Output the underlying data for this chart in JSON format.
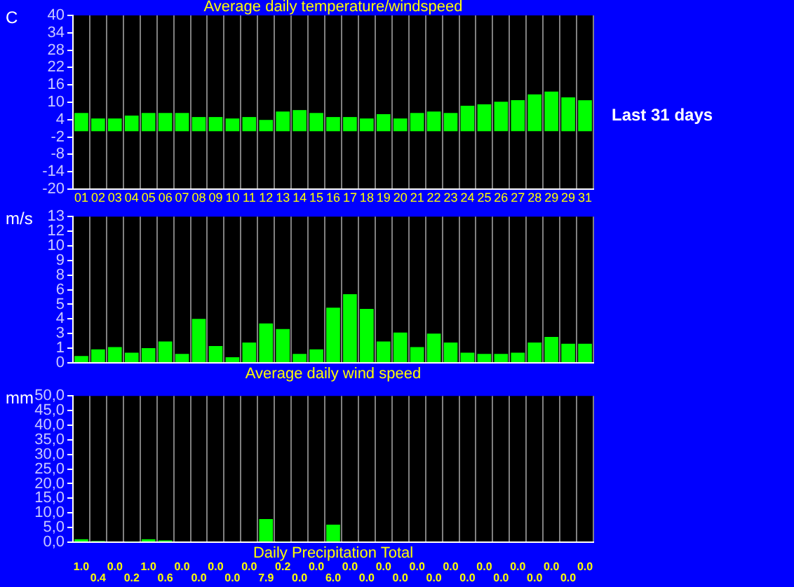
{
  "chart_data": [
    {
      "type": "bar",
      "title": "Average daily temperature/windspeed",
      "ylabel": "C",
      "annotations": [
        "Last 31 days"
      ],
      "categories": [
        "01",
        "02",
        "03",
        "04",
        "05",
        "06",
        "07",
        "08",
        "09",
        "10",
        "11",
        "12",
        "13",
        "14",
        "15",
        "16",
        "17",
        "18",
        "19",
        "20",
        "21",
        "22",
        "23",
        "24",
        "25",
        "26",
        "27",
        "28",
        "29",
        "29",
        "31"
      ],
      "values": [
        6.3,
        4.4,
        4.4,
        5.4,
        6.3,
        6.3,
        6.3,
        4.9,
        4.9,
        4.4,
        4.9,
        3.9,
        6.8,
        7.3,
        6.3,
        4.9,
        4.9,
        4.4,
        5.9,
        4.4,
        6.3,
        6.8,
        6.3,
        8.8,
        9.3,
        10.2,
        10.7,
        12.7,
        13.7,
        11.7,
        10.7
      ],
      "color": "#00ff00",
      "ylim": [
        -20,
        40
      ],
      "yticks": [
        -20,
        -14,
        -8,
        -2,
        4,
        10,
        16,
        22,
        28,
        34,
        40
      ],
      "grid": "x",
      "legend": false
    },
    {
      "type": "bar",
      "title": "Average daily wind speed",
      "ylabel": "m/s",
      "tick_labels": "y",
      "categories": [
        "01",
        "02",
        "03",
        "04",
        "05",
        "06",
        "07",
        "08",
        "09",
        "10",
        "11",
        "12",
        "13",
        "14",
        "15",
        "16",
        "17",
        "18",
        "19",
        "20",
        "21",
        "22",
        "23",
        "24",
        "25",
        "26",
        "27",
        "28",
        "29",
        "29",
        "31"
      ],
      "values": [
        0.6,
        1.2,
        1.4,
        0.9,
        1.3,
        1.9,
        0.8,
        3.9,
        1.5,
        0.5,
        1.8,
        3.5,
        3.0,
        0.8,
        1.2,
        4.9,
        6.1,
        4.8,
        1.9,
        2.7,
        1.4,
        2.6,
        1.8,
        0.9,
        0.8,
        0.8,
        0.9,
        1.8,
        2.3,
        1.7,
        1.7
      ],
      "color": "#00ff00",
      "ylim": [
        0,
        13
      ],
      "yticks": [
        0,
        {
          "value": 1.3,
          "label": "1"
        },
        {
          "value": 2.6,
          "label": "3"
        },
        {
          "value": 3.9,
          "label": "4"
        },
        {
          "value": 5.2,
          "label": "5"
        },
        {
          "value": 6.5,
          "label": "6"
        },
        {
          "value": 7.8,
          "label": "8"
        },
        {
          "value": 9.1,
          "label": "9"
        },
        {
          "value": 10.4,
          "label": "10"
        },
        {
          "value": 11.7,
          "label": "12"
        },
        13
      ],
      "grid": "x",
      "legend": false
    },
    {
      "type": "bar",
      "title": "Daily Precipitation Total",
      "ylabel": "mm",
      "tick_labels": "y",
      "categories": [
        "01",
        "02",
        "03",
        "04",
        "05",
        "06",
        "07",
        "08",
        "09",
        "10",
        "11",
        "12",
        "13",
        "14",
        "15",
        "16",
        "17",
        "18",
        "19",
        "20",
        "21",
        "22",
        "23",
        "24",
        "25",
        "26",
        "27",
        "28",
        "29",
        "29",
        "31"
      ],
      "values": [
        1.0,
        0.4,
        0,
        0.2,
        1.0,
        0.6,
        0,
        0,
        0,
        0,
        0,
        7.9,
        0.2,
        0,
        0,
        6.0,
        0,
        0,
        0,
        0,
        0,
        0,
        0,
        0,
        0,
        0,
        0,
        0,
        0,
        0,
        0
      ],
      "value_labels": [
        "1.0",
        "0.4",
        "0.0",
        "0.2",
        "1.0",
        "0.6",
        "0.0",
        "0.0",
        "0.0",
        "0.0",
        "0.0",
        "7.9",
        "0.2",
        "0.0",
        "0.0",
        "6.0",
        "0.0",
        "0.0",
        "0.0",
        "0.0",
        "0.0",
        "0.0",
        "0.0",
        "0.0",
        "0.0",
        "0.0",
        "0.0",
        "0.0",
        "0.0",
        "0.0",
        "0.0"
      ],
      "color": "#00ff00",
      "ylim": [
        0,
        50
      ],
      "yticks": [
        {
          "value": 0,
          "label": "0,0"
        },
        {
          "value": 5,
          "label": "5,0"
        },
        {
          "value": 10,
          "label": "10,0"
        },
        {
          "value": 15,
          "label": "15,0"
        },
        {
          "value": 20,
          "label": "20,0"
        },
        {
          "value": 25,
          "label": "25,0"
        },
        {
          "value": 30,
          "label": "30,0"
        },
        {
          "value": 35,
          "label": "35,0"
        },
        {
          "value": 40,
          "label": "40,0"
        },
        {
          "value": 45,
          "label": "45,0"
        },
        {
          "value": 50,
          "label": "50,0"
        }
      ],
      "grid": "x",
      "legend": false
    }
  ]
}
